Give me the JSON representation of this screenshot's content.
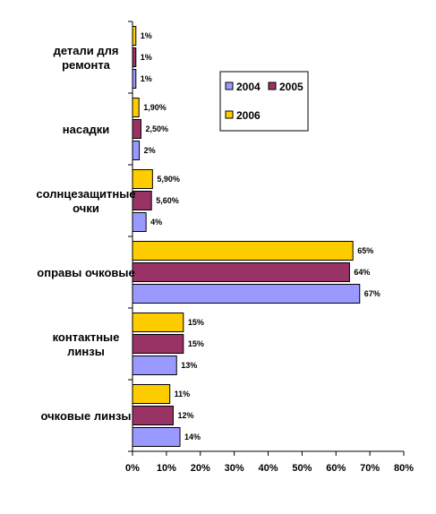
{
  "chart_data": {
    "type": "bar",
    "orientation": "horizontal",
    "categories": [
      [
        "детали для",
        "ремонта"
      ],
      [
        "насадки"
      ],
      [
        "солнцезащитные",
        "очки"
      ],
      [
        "оправы очковые"
      ],
      [
        "контактные",
        "линзы"
      ],
      [
        "очковые линзы"
      ]
    ],
    "series": [
      {
        "name": "2006",
        "color": "#ffcc00",
        "values": [
          1,
          1.9,
          5.9,
          65,
          15,
          11
        ],
        "labels": [
          "1%",
          "1,90%",
          "5,90%",
          "65%",
          "15%",
          "11%"
        ]
      },
      {
        "name": "2005",
        "color": "#993366",
        "values": [
          1,
          2.5,
          5.6,
          64,
          15,
          12
        ],
        "labels": [
          "1%",
          "2,50%",
          "5,60%",
          "64%",
          "15%",
          "12%"
        ]
      },
      {
        "name": "2004",
        "color": "#9999ff",
        "values": [
          1,
          2,
          4,
          67,
          13,
          14
        ],
        "labels": [
          "1%",
          "2%",
          "4%",
          "67%",
          "13%",
          "14%"
        ]
      }
    ],
    "xlim": [
      0,
      80
    ],
    "xticks": [
      "0%",
      "10%",
      "20%",
      "30%",
      "40%",
      "50%",
      "60%",
      "70%",
      "80%"
    ],
    "grid": false,
    "legend": {
      "placement": "right-top",
      "entries": [
        {
          "name": "2004",
          "color": "#9999ff"
        },
        {
          "name": "2005",
          "color": "#993366"
        },
        {
          "name": "2006",
          "color": "#ffcc00"
        }
      ]
    },
    "title": "",
    "xlabel": "",
    "ylabel": ""
  }
}
